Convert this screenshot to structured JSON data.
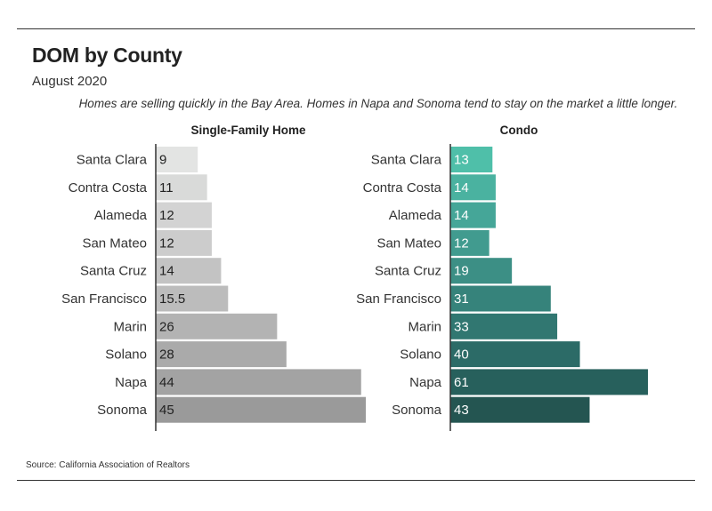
{
  "header": {
    "title": "DOM by County",
    "subtitle": "August 2020",
    "note": "Homes are selling quickly in the Bay Area. Homes in Napa and Sonoma tend to stay on the market a little longer."
  },
  "footer": {
    "source": "Source:  California Association of Realtors"
  },
  "chart_data": [
    {
      "type": "bar",
      "orientation": "horizontal",
      "title": "Single-Family Home",
      "categories": [
        "Santa Clara",
        "Contra Costa",
        "Alameda",
        "San Mateo",
        "Santa Cruz",
        "San Francisco",
        "Marin",
        "Solano",
        "Napa",
        "Sonoma"
      ],
      "values": [
        9,
        11,
        12,
        12,
        14,
        15.5,
        26,
        28,
        44,
        45
      ],
      "value_labels": [
        "9",
        "11",
        "12",
        "12",
        "14",
        "15.5",
        "26",
        "28",
        "44",
        "45"
      ],
      "colors": [
        "#e3e4e3",
        "#d9dad9",
        "#d3d3d3",
        "#cccccc",
        "#c3c3c3",
        "#bcbcbc",
        "#b3b3b3",
        "#aaaaaa",
        "#a3a3a3",
        "#9a9a9a"
      ],
      "xlim": [
        0,
        45
      ],
      "grid": false
    },
    {
      "type": "bar",
      "orientation": "horizontal",
      "title": "Condo",
      "categories": [
        "Santa Clara",
        "Contra Costa",
        "Alameda",
        "San Mateo",
        "Santa Cruz",
        "San Francisco",
        "Marin",
        "Solano",
        "Napa",
        "Sonoma"
      ],
      "values": [
        13,
        14,
        14,
        12,
        19,
        31,
        33,
        40,
        61,
        43
      ],
      "value_labels": [
        "13",
        "14",
        "14",
        "12",
        "19",
        "31",
        "33",
        "40",
        "61",
        "43"
      ],
      "colors": [
        "#4fbfa9",
        "#4ab2a0",
        "#45a698",
        "#419b8f",
        "#3c8f85",
        "#36837b",
        "#317771",
        "#2c6b67",
        "#27605c",
        "#245551"
      ],
      "xlim": [
        0,
        61
      ],
      "grid": false
    }
  ]
}
